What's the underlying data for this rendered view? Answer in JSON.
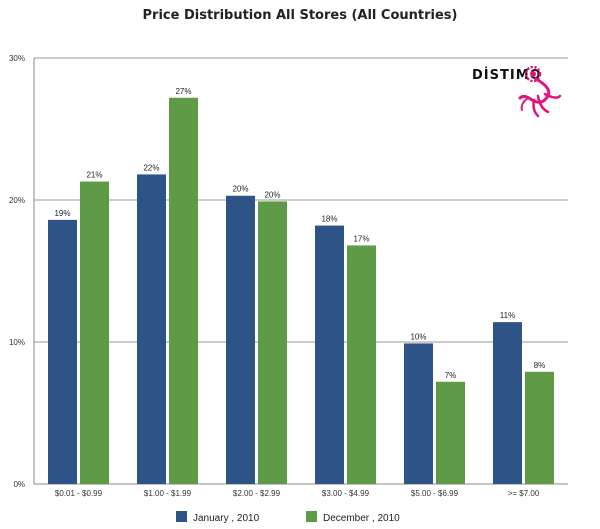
{
  "chart_data": {
    "type": "bar",
    "title": "Price Distribution All Stores (All Countries)",
    "categories": [
      "$0.01 - $0.99",
      "$1.00 - $1.99",
      "$2.00 - $2.99",
      "$3.00 - $4.99",
      "$5.00 - $6.99",
      ">= $7.00"
    ],
    "series": [
      {
        "name": "January , 2010",
        "values": [
          18.6,
          21.8,
          20.3,
          18.2,
          9.9,
          11.4
        ],
        "labels": [
          "19%",
          "22%",
          "20%",
          "18%",
          "10%",
          "11%"
        ],
        "color": "#2e5387"
      },
      {
        "name": "December , 2010",
        "values": [
          21.3,
          27.2,
          19.9,
          16.8,
          7.2,
          7.9
        ],
        "labels": [
          "21%",
          "27%",
          "20%",
          "17%",
          "7%",
          "8%"
        ],
        "color": "#5f9a47"
      }
    ],
    "yticks": [
      "0%",
      "10%",
      "20%",
      "30%"
    ],
    "ylim": [
      0,
      30
    ],
    "grid": true,
    "legend_position": "bottom"
  },
  "logo": {
    "text": "DİSTIMO",
    "color": "#e5127d"
  }
}
